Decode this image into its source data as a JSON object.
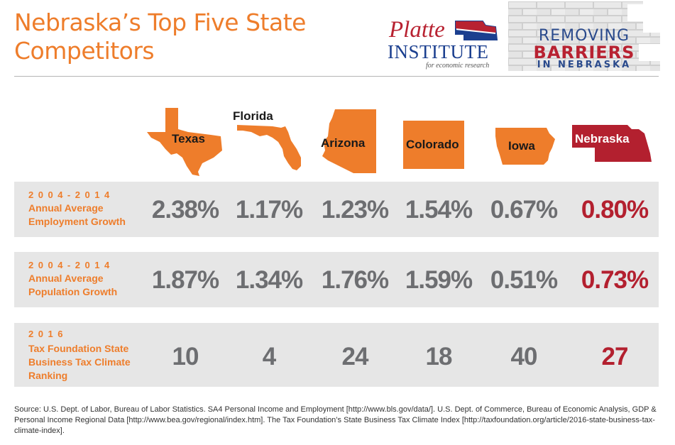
{
  "title": {
    "line1": "Nebraska’s Top Five State",
    "line2": "Competitors"
  },
  "logo": {
    "name1": "Platte",
    "name2": "INSTITUTE",
    "tagline": "for economic research"
  },
  "campaign": {
    "line1": "REMOVING",
    "line2": "BARRIERS",
    "line3": "IN NEBRASKA"
  },
  "colors": {
    "accent": "#ee7d2b",
    "nebraska": "#b3202f",
    "value_gray": "#6d6e71",
    "row_bg": "#e6e6e6"
  },
  "chart_data": {
    "type": "table",
    "columns": [
      "Texas",
      "Florida",
      "Arizona",
      "Colorado",
      "Iowa",
      "Nebraska"
    ],
    "rows": [
      {
        "period": "2004-2014",
        "label_lines": [
          "Annual Average",
          "Employment Growth"
        ],
        "values": [
          "2.38%",
          "1.17%",
          "1.23%",
          "1.54%",
          "0.67%",
          "0.80%"
        ]
      },
      {
        "period": "2004-2014",
        "label_lines": [
          "Annual Average",
          "Population Growth"
        ],
        "values": [
          "1.87%",
          "1.34%",
          "1.76%",
          "1.59%",
          "0.51%",
          "0.73%"
        ]
      },
      {
        "period": "2016",
        "label_lines": [
          "Tax Foundation State",
          "Business Tax Climate",
          "Ranking"
        ],
        "values": [
          "10",
          "4",
          "24",
          "18",
          "40",
          "27"
        ]
      }
    ]
  },
  "source": "Source: U.S. Dept. of Labor, Bureau of Labor Statistics. SA4 Personal Income and Employment [http://www.bls.gov/data/]. U.S. Dept. of Commerce, Bureau of Economic Analysis, GDP & Personal Income Regional Data [http://www.bea.gov/regional/index.htm]. The Tax Foundation’s State Business Tax Climate Index [http://taxfoundation.org/article/2016-state-business-tax-climate-index]."
}
